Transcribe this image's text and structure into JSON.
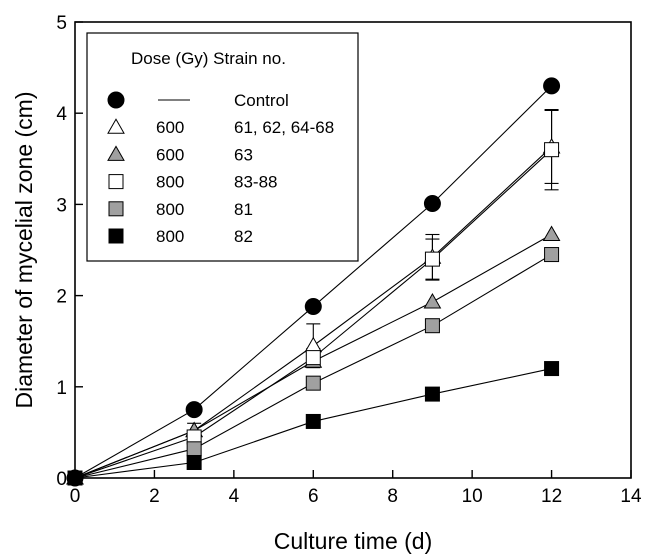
{
  "chart_data": {
    "type": "line",
    "xlabel": "Culture time (d)",
    "ylabel": "Diameter of mycelial zone (cm)",
    "xlim": [
      0,
      14
    ],
    "ylim": [
      0,
      5
    ],
    "xticks": [
      "0",
      "2",
      "4",
      "6",
      "8",
      "10",
      "12",
      "14"
    ],
    "yticks": [
      "0",
      "1",
      "2",
      "3",
      "4",
      "5"
    ],
    "grid": false,
    "legend": {
      "placement": "top-left",
      "header": "Dose (Gy) Strain no.",
      "entries": [
        {
          "marker": "circle",
          "fill": "#000000",
          "dose": "—",
          "strain": "Control"
        },
        {
          "marker": "triangle",
          "fill": "#ffffff",
          "dose": "600",
          "strain": "61, 62, 64-68"
        },
        {
          "marker": "triangle",
          "fill": "#a0a0a0",
          "dose": "600",
          "strain": "63"
        },
        {
          "marker": "square",
          "fill": "#ffffff",
          "dose": "800",
          "strain": "83-88"
        },
        {
          "marker": "square",
          "fill": "#a0a0a0",
          "dose": "800",
          "strain": "81"
        },
        {
          "marker": "square",
          "fill": "#000000",
          "dose": "800",
          "strain": "82"
        }
      ]
    },
    "x": [
      0,
      3,
      6,
      9,
      12
    ],
    "series": [
      {
        "marker": "circle",
        "fill": "#000000",
        "values": [
          0,
          0.75,
          1.88,
          3.01,
          4.3
        ]
      },
      {
        "marker": "triangle",
        "fill": "#ffffff",
        "values": [
          0,
          0.52,
          1.45,
          2.42,
          3.63
        ],
        "errors": [
          0,
          0.08,
          0.24,
          0.25,
          0.4
        ]
      },
      {
        "marker": "triangle",
        "fill": "#a0a0a0",
        "values": [
          0,
          0.52,
          1.28,
          1.93,
          2.67
        ]
      },
      {
        "marker": "square",
        "fill": "#ffffff",
        "values": [
          0,
          0.45,
          1.32,
          2.4,
          3.6
        ],
        "errors": [
          0,
          0.06,
          0.1,
          0.22,
          0.44
        ]
      },
      {
        "marker": "square",
        "fill": "#a0a0a0",
        "values": [
          0,
          0.32,
          1.04,
          1.67,
          2.45
        ]
      },
      {
        "marker": "square",
        "fill": "#000000",
        "values": [
          0,
          0.17,
          0.62,
          0.92,
          1.2
        ]
      }
    ]
  }
}
